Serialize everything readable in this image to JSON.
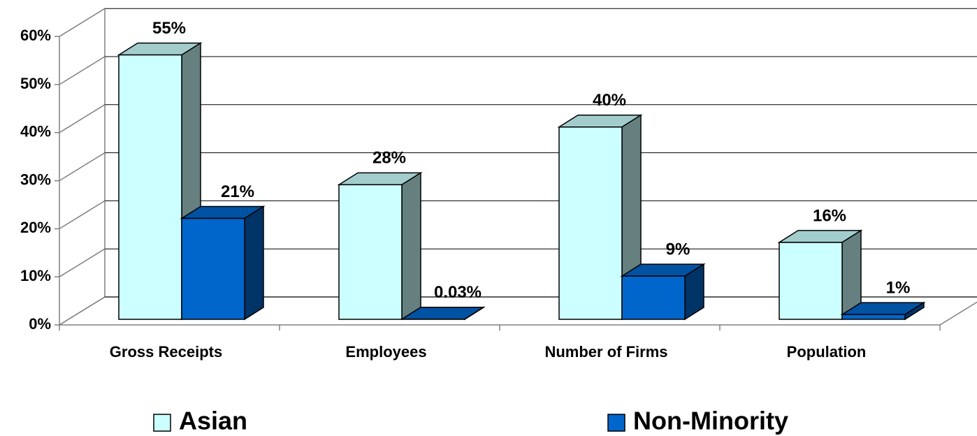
{
  "chart_data": {
    "type": "bar3d",
    "categories": [
      "Gross Receipts",
      "Employees",
      "Number of Firms",
      "Population"
    ],
    "series": [
      {
        "name": "Asian",
        "color": "#ccffff",
        "values": [
          55,
          28,
          40,
          16
        ],
        "value_labels": [
          "55%",
          "28%",
          "40%",
          "16%"
        ]
      },
      {
        "name": "Non-Minority",
        "color": "#0066cc",
        "values": [
          21,
          0.03,
          9,
          1
        ],
        "value_labels": [
          "21%",
          "0.03%",
          "9%",
          "1%"
        ]
      }
    ],
    "ylim": [
      0,
      60
    ],
    "yticks": [
      {
        "value": 0,
        "label": "0%"
      },
      {
        "value": 10,
        "label": "10%"
      },
      {
        "value": 20,
        "label": "20%"
      },
      {
        "value": 30,
        "label": "30%"
      },
      {
        "value": 40,
        "label": "40%"
      },
      {
        "value": 50,
        "label": "50%"
      },
      {
        "value": 60,
        "label": "60%"
      }
    ],
    "grid": true,
    "legend": "bottom"
  }
}
